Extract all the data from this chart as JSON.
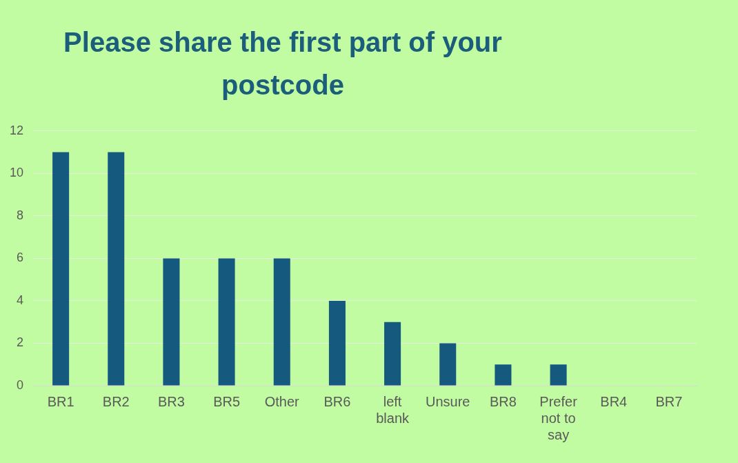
{
  "chart_data": {
    "type": "bar",
    "title": "Please share the first part of your postcode",
    "categories": [
      "BR1",
      "BR2",
      "BR3",
      "BR5",
      "Other",
      "BR6",
      "left blank",
      "Unsure",
      "BR8",
      "Prefer not to say",
      "BR4",
      "BR7"
    ],
    "values": [
      11,
      11,
      6,
      6,
      6,
      4,
      3,
      2,
      1,
      1,
      0,
      0
    ],
    "color": "#155a7e",
    "ylim": [
      0,
      12
    ],
    "yticks": [
      0,
      2,
      4,
      6,
      8,
      10,
      12
    ],
    "grid": "y"
  }
}
